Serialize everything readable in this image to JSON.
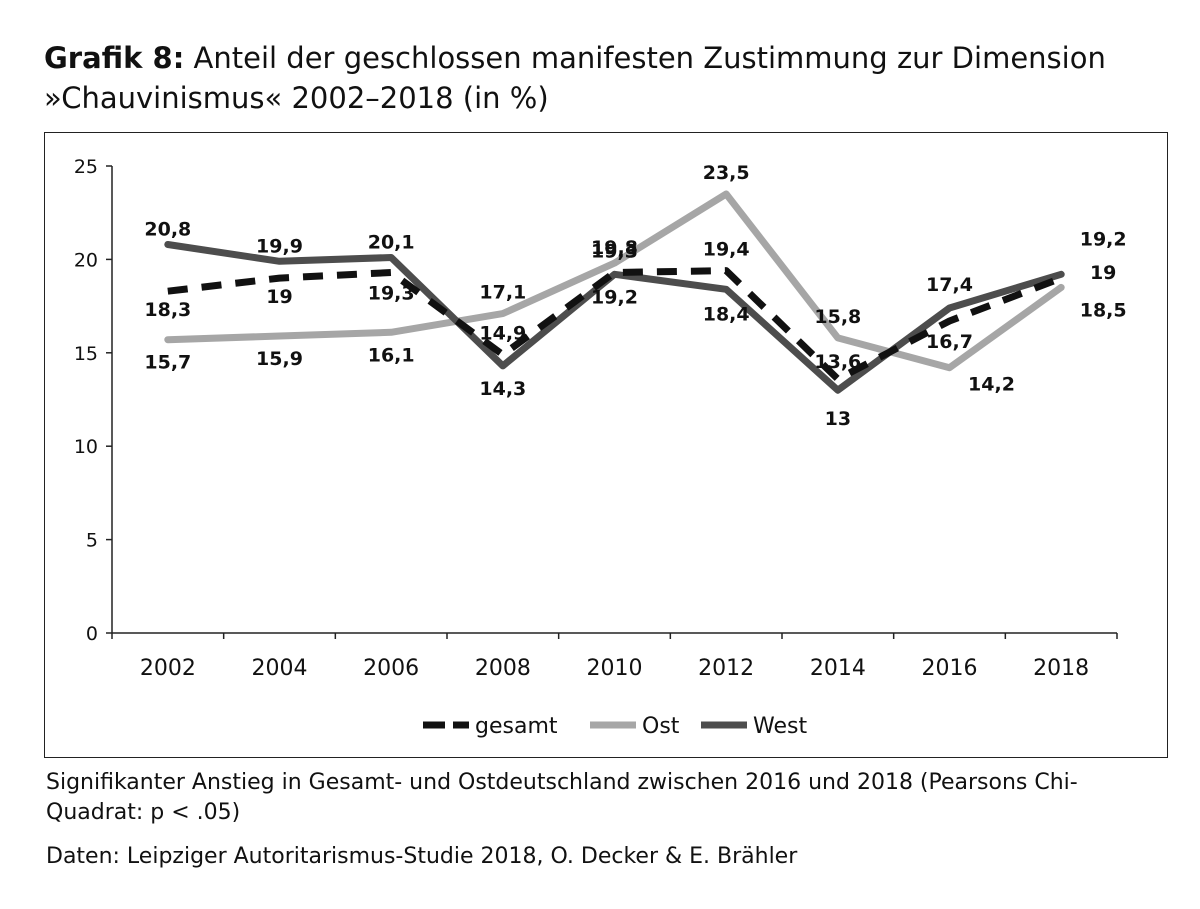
{
  "title": {
    "label": "Grafik 8:",
    "text": "Anteil der geschlossen manifesten Zustimmung zur Dimension »Chauvinismus« 2002–2018 (in %)"
  },
  "notes": {
    "significance": "Signifikanter Anstieg in Gesamt- und Ostdeutschland zwischen 2016 und 2018 (Pearsons Chi-Quadrat: p < .05)",
    "source": "Daten: Leipziger Autoritarismus-Studie 2018, O. Decker & E. Brähler"
  },
  "chart_data": {
    "type": "line",
    "title": "Anteil der geschlossen manifesten Zustimmung zur Dimension »Chauvinismus« 2002–2018 (in %)",
    "categories": [
      "2002",
      "2004",
      "2006",
      "2008",
      "2010",
      "2012",
      "2014",
      "2016",
      "2018"
    ],
    "ylim": [
      0,
      25
    ],
    "yticks": [
      0,
      5,
      10,
      15,
      20,
      25
    ],
    "grid": false,
    "legend": "bottom",
    "series": [
      {
        "name": "gesamt",
        "color": "#111111",
        "dashed": true,
        "values": [
          18.3,
          19,
          19.3,
          14.9,
          19.3,
          19.4,
          13.6,
          16.7,
          19
        ],
        "labels": [
          "18,3",
          "19",
          "19,3",
          "14,9",
          "19,3",
          "19,4",
          "13,6",
          "16,7",
          "19"
        ]
      },
      {
        "name": "Ost",
        "color": "#a6a6a6",
        "dashed": false,
        "values": [
          15.7,
          15.9,
          16.1,
          17.1,
          19.8,
          23.5,
          15.8,
          14.2,
          18.5
        ],
        "labels": [
          "15,7",
          "15,9",
          "16,1",
          "17,1",
          "19,8",
          "23,5",
          "15,8",
          "14,2",
          "18,5"
        ]
      },
      {
        "name": "West",
        "color": "#4d4d4d",
        "dashed": false,
        "values": [
          20.8,
          19.9,
          20.1,
          14.3,
          19.2,
          18.4,
          13,
          17.4,
          19.2
        ],
        "labels": [
          "20,8",
          "19,9",
          "20,1",
          "14,3",
          "19,2",
          "18,4",
          "13",
          "17,4",
          "19,2"
        ]
      }
    ]
  }
}
